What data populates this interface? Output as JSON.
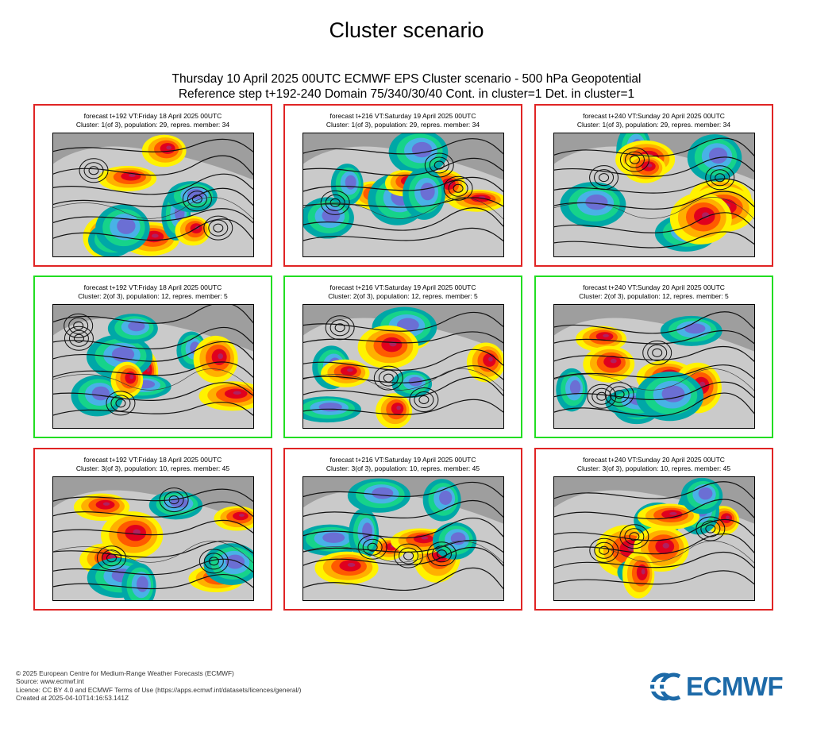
{
  "page": {
    "title": "Cluster scenario",
    "main_title_line1": "Thursday 10 April 2025 00UTC ECMWF EPS Cluster scenario - 500 hPa Geopotential",
    "main_title_line2": "Reference step t+192-240 Domain 75/340/30/40 Cont. in cluster=1 Det. in cluster=1"
  },
  "colors": {
    "cluster_border_red": "#e02424",
    "cluster_border_green": "#22dd22",
    "land_gray": "#9e9e9e",
    "negative_anomaly": [
      "#00a7a7",
      "#16d38a",
      "#48b2e6",
      "#6b6fd4"
    ],
    "positive_anomaly": [
      "#fff200",
      "#ffb000",
      "#ff5a00",
      "#e0001e",
      "#b02060"
    ],
    "logo_blue": "#1d6aa8"
  },
  "chart_data": {
    "type": "heatmap",
    "variable": "500 hPa Geopotential",
    "layout": "3 clusters x 3 forecast steps",
    "panels": [
      {
        "line1": "forecast t+192 VT:Friday 18 April 2025 00UTC",
        "line2": "Cluster: 1(of 3), population: 29, repres. member: 34",
        "cluster": 1,
        "step": 192,
        "border": "red"
      },
      {
        "line1": "forecast t+216 VT:Saturday 19 April 2025 00UTC",
        "line2": "Cluster: 1(of 3), population: 29, repres. member: 34",
        "cluster": 1,
        "step": 216,
        "border": "red"
      },
      {
        "line1": "forecast t+240 VT:Sunday 20 April 2025 00UTC",
        "line2": "Cluster: 1(of 3), population: 29, repres. member: 34",
        "cluster": 1,
        "step": 240,
        "border": "red"
      },
      {
        "line1": "forecast t+192 VT:Friday 18 April 2025 00UTC",
        "line2": "Cluster: 2(of 3), population: 12, repres. member: 5",
        "cluster": 2,
        "step": 192,
        "border": "green"
      },
      {
        "line1": "forecast t+216 VT:Saturday 19 April 2025 00UTC",
        "line2": "Cluster: 2(of 3), population: 12, repres. member: 5",
        "cluster": 2,
        "step": 216,
        "border": "green"
      },
      {
        "line1": "forecast t+240 VT:Sunday 20 April 2025 00UTC",
        "line2": "Cluster: 2(of 3), population: 12, repres. member: 5",
        "cluster": 2,
        "step": 240,
        "border": "green"
      },
      {
        "line1": "forecast t+192 VT:Friday 18 April 2025 00UTC",
        "line2": "Cluster: 3(of 3), population: 10, repres. member: 45",
        "cluster": 3,
        "step": 192,
        "border": "red"
      },
      {
        "line1": "forecast t+216 VT:Saturday 19 April 2025 00UTC",
        "line2": "Cluster: 3(of 3), population: 10, repres. member: 45",
        "cluster": 3,
        "step": 216,
        "border": "red"
      },
      {
        "line1": "forecast t+240 VT:Sunday 20 April 2025 00UTC",
        "line2": "Cluster: 3(of 3), population: 10, repres. member: 45",
        "cluster": 3,
        "step": 240,
        "border": "red"
      }
    ]
  },
  "footer": {
    "line1": "© 2025 European Centre for Medium-Range Weather Forecasts (ECMWF)",
    "line2": "Source: www.ecmwf.int",
    "line3": "Licence: CC BY 4.0 and ECMWF Terms of Use (https://apps.ecmwf.int/datasets/licences/general/)",
    "line4": "Created at 2025-04-10T14:16:53.141Z"
  },
  "logo": {
    "text": "ECMWF",
    "icon": "ecmwf-logo-icon"
  }
}
